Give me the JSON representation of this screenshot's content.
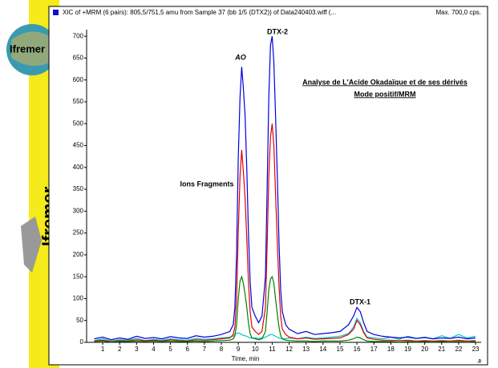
{
  "slide": {
    "brand": "Ifremer",
    "logo_text": "Ifremer"
  },
  "chart_data": {
    "type": "line",
    "title": "XIC of +MRM (6 pairs): 805,5/751,5 amu from Sample 37 (bb 1/5 (DTX2)) of Data240403.wiff (...",
    "max_label": "Max. 700,0 cps.",
    "xlabel": "Time, min",
    "corner_label": ".0",
    "annotations": [
      "AO",
      "DTX-2",
      "Ions Fragments",
      "DTX-1"
    ],
    "heading": [
      "Analyse de L'Acide Okadaïque et de ses dérivés",
      "Mode positif/MRM"
    ],
    "legend_color": "#1010c8",
    "xlim": [
      0.05,
      23.33
    ],
    "ylim": [
      0,
      715
    ],
    "xticks": [
      1,
      2,
      3,
      4,
      5,
      6,
      7,
      8,
      9,
      10,
      11,
      12,
      13,
      14,
      15,
      16,
      17,
      18,
      19,
      20,
      21,
      22,
      23
    ],
    "yticks": [
      0,
      50,
      100,
      150,
      200,
      250,
      300,
      350,
      400,
      450,
      500,
      550,
      600,
      650,
      700
    ],
    "x": [
      0.5,
      1,
      1.5,
      2,
      2.5,
      3,
      3.5,
      4,
      4.5,
      5,
      5.5,
      6,
      6.5,
      7,
      7.5,
      8,
      8.5,
      8.7,
      8.8,
      8.9,
      9.0,
      9.1,
      9.2,
      9.3,
      9.4,
      9.5,
      9.6,
      9.7,
      9.8,
      10.0,
      10.2,
      10.4,
      10.6,
      10.7,
      10.8,
      10.9,
      11.0,
      11.1,
      11.2,
      11.3,
      11.4,
      11.5,
      11.6,
      11.8,
      12.0,
      12.5,
      13,
      13.5,
      14,
      14.5,
      15,
      15.5,
      15.8,
      16.0,
      16.2,
      16.4,
      16.6,
      17,
      17.5,
      18,
      18.5,
      19,
      19.5,
      20,
      20.5,
      21,
      21.5,
      22,
      22.5,
      23
    ],
    "series": [
      {
        "color": "#00c8c8",
        "values": [
          4,
          8,
          3,
          6,
          5,
          9,
          4,
          7,
          5,
          8,
          6,
          5,
          9,
          7,
          8,
          10,
          12,
          14,
          18,
          20,
          22,
          20,
          18,
          16,
          15,
          14,
          12,
          10,
          10,
          10,
          9,
          10,
          12,
          14,
          16,
          18,
          18,
          16,
          14,
          12,
          10,
          9,
          8,
          8,
          10,
          8,
          12,
          9,
          10,
          12,
          14,
          20,
          35,
          55,
          45,
          25,
          12,
          10,
          8,
          12,
          7,
          14,
          9,
          12,
          8,
          15,
          9,
          18,
          10,
          14
        ]
      },
      {
        "color": "#0000e0",
        "values": [
          8,
          12,
          6,
          10,
          7,
          14,
          9,
          11,
          8,
          13,
          10,
          9,
          15,
          12,
          14,
          18,
          25,
          40,
          80,
          200,
          420,
          560,
          630,
          580,
          520,
          400,
          250,
          140,
          80,
          60,
          45,
          60,
          150,
          350,
          560,
          680,
          700,
          640,
          520,
          380,
          230,
          120,
          70,
          40,
          30,
          20,
          25,
          18,
          20,
          22,
          25,
          40,
          60,
          80,
          70,
          45,
          25,
          18,
          14,
          12,
          10,
          12,
          9,
          11,
          8,
          10,
          9,
          12,
          8,
          10
        ]
      },
      {
        "color": "#e00000",
        "values": [
          3,
          5,
          2,
          4,
          3,
          6,
          4,
          5,
          3,
          6,
          4,
          3,
          6,
          5,
          6,
          8,
          10,
          18,
          35,
          100,
          250,
          380,
          440,
          390,
          330,
          240,
          140,
          70,
          35,
          25,
          18,
          25,
          80,
          220,
          380,
          470,
          500,
          450,
          340,
          230,
          130,
          60,
          30,
          18,
          12,
          8,
          10,
          7,
          8,
          9,
          10,
          18,
          30,
          50,
          40,
          22,
          10,
          7,
          5,
          5,
          4,
          5,
          3,
          4,
          3,
          4,
          3,
          5,
          3,
          4
        ]
      },
      {
        "color": "#008000",
        "values": [
          2,
          3,
          1,
          2,
          2,
          3,
          2,
          3,
          2,
          3,
          2,
          2,
          3,
          2,
          3,
          4,
          5,
          8,
          15,
          40,
          100,
          140,
          150,
          135,
          110,
          80,
          45,
          20,
          10,
          8,
          6,
          8,
          25,
          70,
          120,
          145,
          150,
          135,
          100,
          65,
          35,
          15,
          8,
          5,
          4,
          3,
          3,
          2,
          3,
          3,
          3,
          5,
          8,
          12,
          10,
          6,
          3,
          2,
          2,
          2,
          1,
          2,
          1,
          2,
          1,
          2,
          1,
          2,
          1,
          2
        ]
      }
    ]
  }
}
